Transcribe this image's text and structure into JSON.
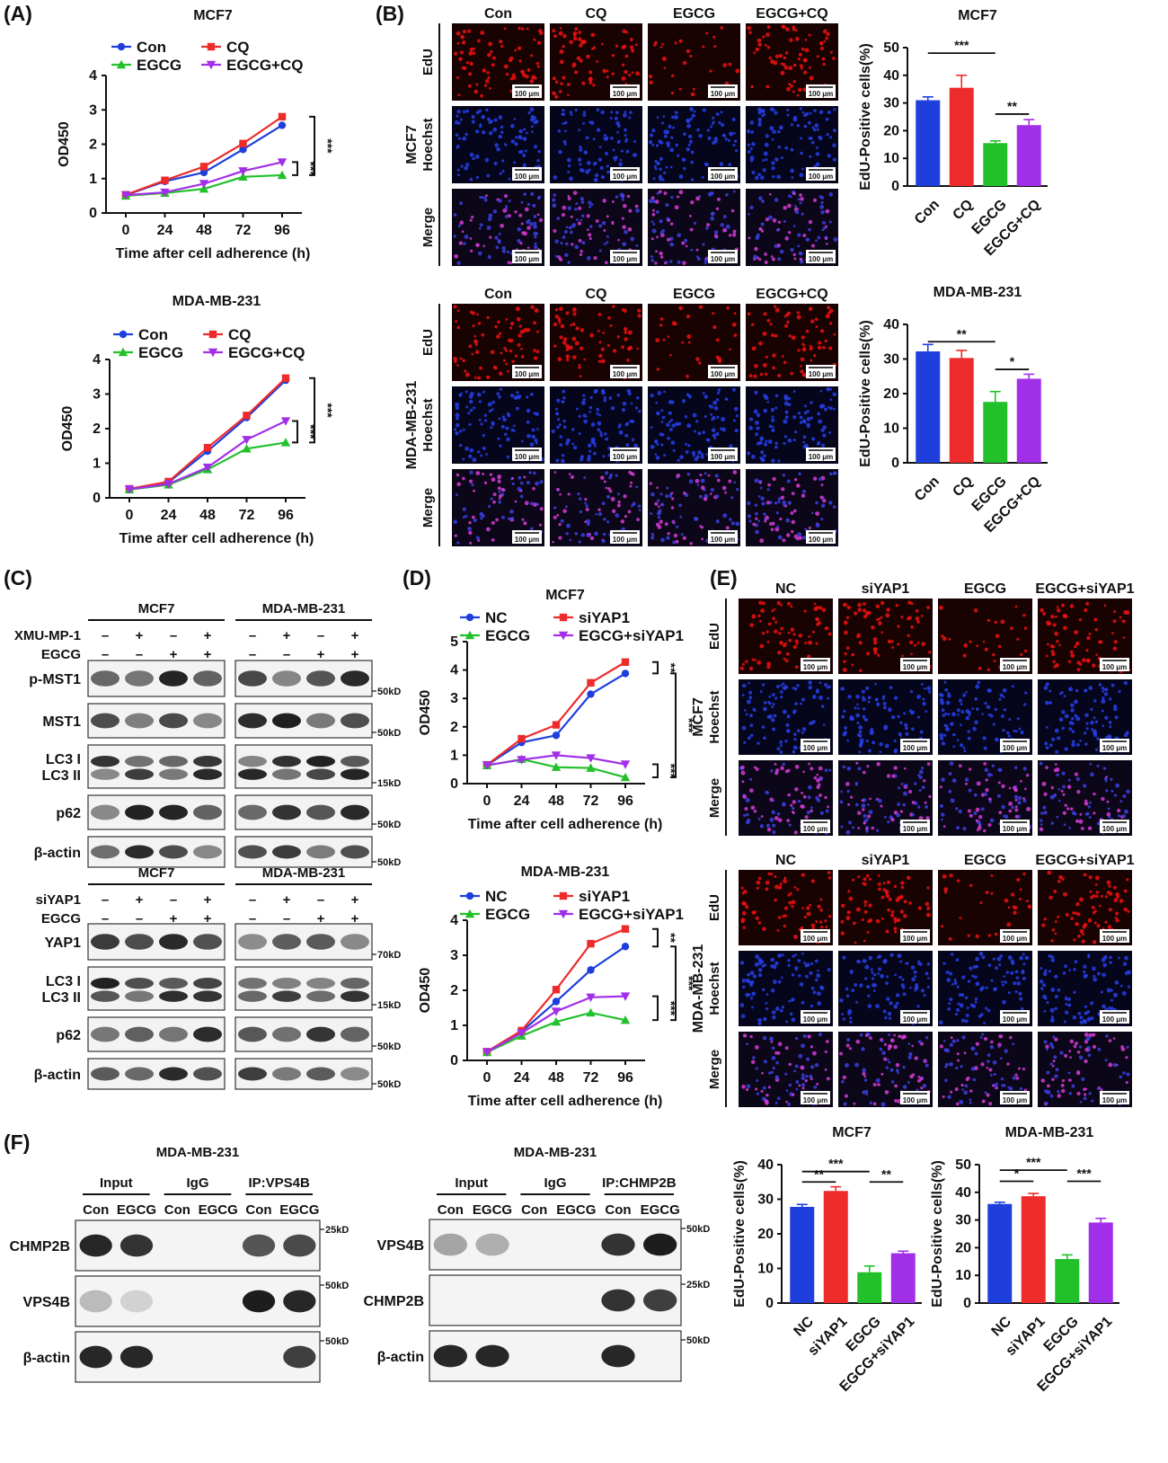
{
  "panel_labels": [
    "(A)",
    "(B)",
    "(C)",
    "(D)",
    "(E)",
    "(F)"
  ],
  "colors": {
    "con": "#1f3fdd",
    "cq": "#ee2b2b",
    "egcg": "#22c02a",
    "combo": "#a22fe8",
    "ink": "#111111",
    "edu": "#2a0404",
    "hoechst": "#0a0a4a",
    "merge": "#1a0a3a"
  },
  "growth_axis": {
    "ylabel": "OD450",
    "xlabel": "Time after cell adherence (h)",
    "xticks": [
      "0",
      "24",
      "48",
      "72",
      "96"
    ]
  },
  "edu_axis": {
    "ylabel": "EdU-Positive cells(%)"
  },
  "panel_b": {
    "columns": [
      "Con",
      "CQ",
      "EGCG",
      "EGCG+CQ"
    ],
    "rows": [
      "EdU",
      "Hoechst",
      "Merge"
    ],
    "cells": [
      "MCF7",
      "MDA-MB-231"
    ],
    "scale_bar": "100 μm"
  },
  "panel_e": {
    "columns": [
      "NC",
      "siYAP1",
      "EGCG",
      "EGCG+siYAP1"
    ],
    "rows": [
      "EdU",
      "Hoechst",
      "Merge"
    ],
    "cells": [
      "MCF7",
      "MDA-MB-231"
    ],
    "scale_bar": "100 μm"
  },
  "panel_c": {
    "top": {
      "cells": [
        "MCF7",
        "MDA-MB-231"
      ],
      "treat_rows": [
        {
          "label": "XMU-MP-1",
          "signs": [
            "–",
            "+",
            "–",
            "+"
          ]
        },
        {
          "label": "EGCG",
          "signs": [
            "–",
            "–",
            "+",
            "+"
          ]
        }
      ],
      "bands": [
        {
          "label": "p-MST1",
          "size": "50kD"
        },
        {
          "label": "MST1",
          "size": "50kD"
        },
        {
          "label": "LC3 I\nLC3 II",
          "size": "15kD"
        },
        {
          "label": "p62",
          "size": "50kD"
        },
        {
          "label": "β-actin",
          "size": "50kD"
        }
      ]
    },
    "bottom": {
      "cells": [
        "MCF7",
        "MDA-MB-231"
      ],
      "treat_rows": [
        {
          "label": "siYAP1",
          "signs": [
            "–",
            "+",
            "–",
            "+"
          ]
        },
        {
          "label": "EGCG",
          "signs": [
            "–",
            "–",
            "+",
            "+"
          ]
        }
      ],
      "bands": [
        {
          "label": "YAP1",
          "size": "70kD"
        },
        {
          "label": "LC3 I\nLC3 II",
          "size": "15kD"
        },
        {
          "label": "p62",
          "size": "50kD"
        },
        {
          "label": "β-actin",
          "size": "50kD"
        }
      ]
    }
  },
  "panel_f": {
    "left": {
      "title": "MDA-MB-231",
      "groups": [
        "Input",
        "IgG",
        "IP:VPS4B"
      ],
      "lanes": [
        "Con",
        "EGCG",
        "Con",
        "EGCG",
        "Con",
        "EGCG"
      ],
      "bands": [
        {
          "label": "CHMP2B",
          "size": "25kD"
        },
        {
          "label": "VPS4B",
          "size": "50kD"
        },
        {
          "label": "β-actin",
          "size": "50kD"
        }
      ]
    },
    "right": {
      "title": "MDA-MB-231",
      "groups": [
        "Input",
        "IgG",
        "IP:CHMP2B"
      ],
      "lanes": [
        "Con",
        "EGCG",
        "Con",
        "EGCG",
        "Con",
        "EGCG"
      ],
      "bands": [
        {
          "label": "VPS4B",
          "size": "50kD"
        },
        {
          "label": "CHMP2B",
          "size": "25kD"
        },
        {
          "label": "β-actin",
          "size": "50kD"
        }
      ]
    }
  },
  "chart_data": [
    {
      "id": "A1",
      "type": "line",
      "title": "MCF7",
      "x": [
        0,
        24,
        48,
        72,
        96
      ],
      "ylim": [
        0,
        4
      ],
      "yticks": [
        0,
        1,
        2,
        3,
        4
      ],
      "series": [
        {
          "name": "Con",
          "values": [
            0.52,
            0.92,
            1.18,
            1.85,
            2.55
          ]
        },
        {
          "name": "CQ",
          "values": [
            0.53,
            0.95,
            1.35,
            2.02,
            2.8
          ]
        },
        {
          "name": "EGCG",
          "values": [
            0.5,
            0.58,
            0.7,
            1.05,
            1.1
          ]
        },
        {
          "name": "EGCG+CQ",
          "values": [
            0.52,
            0.6,
            0.85,
            1.22,
            1.48
          ]
        }
      ],
      "annotations": [
        "***",
        "***"
      ]
    },
    {
      "id": "A2",
      "type": "line",
      "title": "MDA-MB-231",
      "x": [
        0,
        24,
        48,
        72,
        96
      ],
      "ylim": [
        0,
        4
      ],
      "yticks": [
        0,
        1,
        2,
        3,
        4
      ],
      "series": [
        {
          "name": "Con",
          "values": [
            0.25,
            0.45,
            1.35,
            2.32,
            3.4
          ]
        },
        {
          "name": "CQ",
          "values": [
            0.26,
            0.47,
            1.45,
            2.38,
            3.46
          ]
        },
        {
          "name": "EGCG",
          "values": [
            0.24,
            0.38,
            0.82,
            1.42,
            1.6
          ]
        },
        {
          "name": "EGCG+CQ",
          "values": [
            0.25,
            0.4,
            0.88,
            1.68,
            2.22
          ]
        }
      ],
      "annotations": [
        "***",
        "***"
      ]
    },
    {
      "id": "B1",
      "type": "bar",
      "title": "MCF7",
      "categories": [
        "Con",
        "CQ",
        "EGCG",
        "EGCG+CQ"
      ],
      "values": [
        31,
        35.5,
        15.5,
        22
      ],
      "errors": [
        1.2,
        4.5,
        0.8,
        2
      ],
      "ylim": [
        0,
        50
      ],
      "yticks": [
        0,
        10,
        20,
        30,
        40,
        50
      ],
      "sig": [
        "***",
        "**"
      ]
    },
    {
      "id": "B2",
      "type": "bar",
      "title": "MDA-MB-231",
      "categories": [
        "Con",
        "CQ",
        "EGCG",
        "EGCG+CQ"
      ],
      "values": [
        32.2,
        30.3,
        17.6,
        24.3
      ],
      "errors": [
        2,
        2.2,
        3,
        1.3
      ],
      "ylim": [
        0,
        40
      ],
      "yticks": [
        0,
        10,
        20,
        30,
        40
      ],
      "sig": [
        "**",
        "*"
      ]
    },
    {
      "id": "D1",
      "type": "line",
      "title": "MCF7",
      "x": [
        0,
        24,
        48,
        72,
        96
      ],
      "ylim": [
        0,
        5
      ],
      "yticks": [
        0,
        1,
        2,
        3,
        4,
        5
      ],
      "series": [
        {
          "name": "NC",
          "values": [
            0.65,
            1.45,
            1.7,
            3.15,
            3.88
          ]
        },
        {
          "name": "siYAP1",
          "values": [
            0.66,
            1.58,
            2.07,
            3.55,
            4.28
          ]
        },
        {
          "name": "EGCG",
          "values": [
            0.64,
            0.86,
            0.58,
            0.55,
            0.22
          ]
        },
        {
          "name": "EGCG+siYAP1",
          "values": [
            0.65,
            0.84,
            1.0,
            0.9,
            0.68
          ]
        }
      ],
      "annotations": [
        "**",
        "***",
        "***"
      ]
    },
    {
      "id": "D2",
      "type": "line",
      "title": "MDA-MB-231",
      "x": [
        0,
        24,
        48,
        72,
        96
      ],
      "ylim": [
        0,
        4
      ],
      "yticks": [
        0,
        1,
        2,
        3,
        4
      ],
      "series": [
        {
          "name": "NC",
          "values": [
            0.24,
            0.82,
            1.68,
            2.58,
            3.25
          ]
        },
        {
          "name": "siYAP1",
          "values": [
            0.25,
            0.85,
            2.02,
            3.33,
            3.75
          ]
        },
        {
          "name": "EGCG",
          "values": [
            0.23,
            0.7,
            1.1,
            1.36,
            1.15
          ]
        },
        {
          "name": "EGCG+siYAP1",
          "values": [
            0.24,
            0.78,
            1.4,
            1.8,
            1.83
          ]
        }
      ],
      "annotations": [
        "**",
        "***",
        "***"
      ]
    },
    {
      "id": "E1",
      "type": "bar",
      "title": "MCF7",
      "categories": [
        "NC",
        "siYAP1",
        "EGCG",
        "EGCG+siYAP1"
      ],
      "values": [
        27.8,
        32.4,
        8.9,
        14.4
      ],
      "errors": [
        0.7,
        1.2,
        1.8,
        0.6
      ],
      "ylim": [
        0,
        40
      ],
      "yticks": [
        0,
        10,
        20,
        30,
        40
      ],
      "sig": [
        "***",
        "**",
        "**"
      ]
    },
    {
      "id": "E2",
      "type": "bar",
      "title": "MDA-MB-231",
      "categories": [
        "NC",
        "siYAP1",
        "EGCG",
        "EGCG+siYAP1"
      ],
      "values": [
        35.8,
        38.6,
        15.9,
        29.1
      ],
      "errors": [
        0.6,
        1.0,
        1.5,
        1.5
      ],
      "ylim": [
        0,
        50
      ],
      "yticks": [
        0,
        10,
        20,
        30,
        40,
        50
      ],
      "sig": [
        "***",
        "*",
        "***"
      ]
    }
  ]
}
